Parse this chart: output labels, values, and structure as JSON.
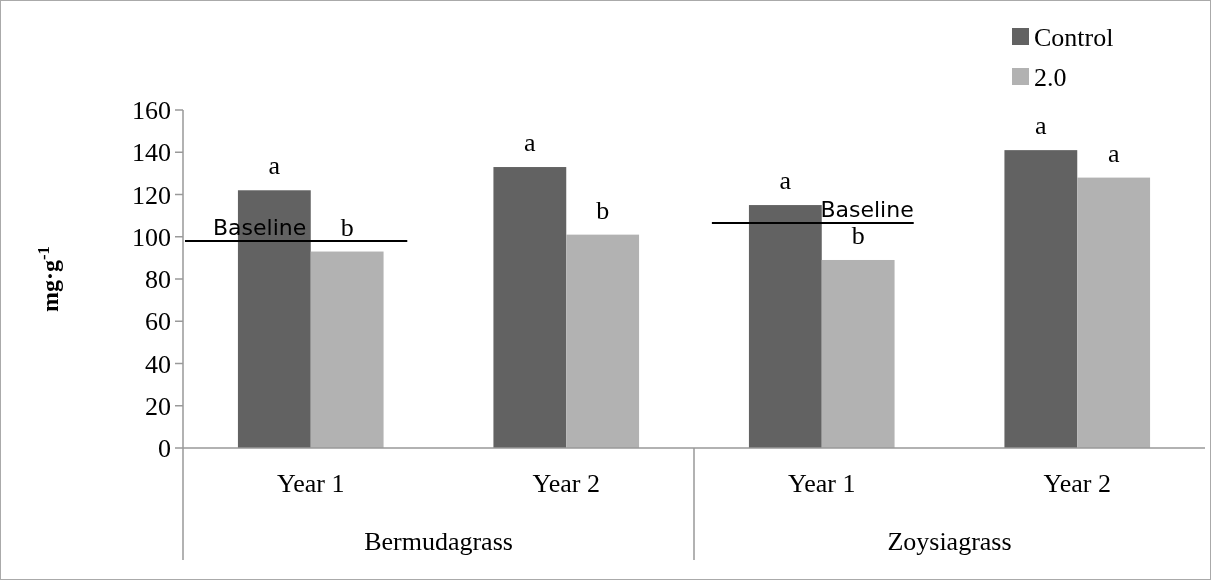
{
  "chart_data": {
    "type": "bar",
    "ylabel": "mg·g$^{-1}$",
    "categories": [
      "Year 1",
      "Year 2",
      "Year 1",
      "Year 2"
    ],
    "series": [
      {
        "name": "Control",
        "color": "#626262",
        "values": [
          122,
          133,
          115,
          141
        ],
        "value_labels": [
          "a",
          "a",
          "a",
          "a"
        ]
      },
      {
        "name": "2.0",
        "color": "#b2b2b2",
        "values": [
          93,
          101,
          89,
          128
        ],
        "value_labels": [
          "b",
          "b",
          "b",
          "a"
        ]
      }
    ],
    "ylim": [
      0,
      160
    ],
    "yticks": [
      0,
      20,
      40,
      60,
      80,
      100,
      120,
      140,
      160
    ],
    "ref_lines": [
      {
        "axis": "y",
        "value": 98,
        "label": "Baseline",
        "color": "#000000"
      },
      {
        "axis": "y",
        "value": 106.5,
        "label": "Baseline",
        "color": "#000000"
      }
    ],
    "annotations": [
      "Bermudagrass",
      "Zoysiagrass"
    ],
    "legend": "top right",
    "grid": false
  }
}
